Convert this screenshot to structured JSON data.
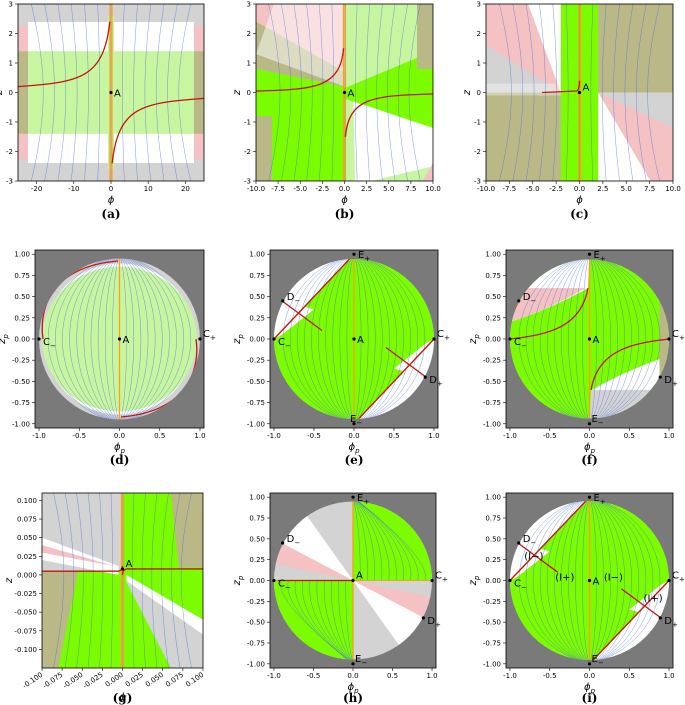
{
  "figure": {
    "background": "#ffffff"
  },
  "colors": {
    "out_gray": "#7a7a7a",
    "grey": "#d3d3d3",
    "green": "#7cfc00",
    "light_green": "#c8f5a0",
    "olive": "#b9b886",
    "pink": "#f4c2c2",
    "stream": "#4169e1",
    "traj": "#c0170c",
    "orange": "#ff9e1a"
  },
  "panels": [
    {
      "id": "a",
      "caption": "(a)",
      "kind": "cart",
      "theme": "a",
      "xlabel": "ϕ",
      "ylabel": "z",
      "xlim": [
        -25,
        25
      ],
      "ylim": [
        -3,
        3
      ],
      "xticks": [
        "-20",
        "-10",
        "0",
        "10",
        "20"
      ],
      "xtick_vals": [
        -20,
        -10,
        0,
        10,
        20
      ],
      "yticks": [
        "-3",
        "-2",
        "-1",
        "0",
        "1",
        "2",
        "3"
      ],
      "ytick_vals": [
        -3,
        -2,
        -1,
        0,
        1,
        2,
        3
      ],
      "points": [
        {
          "label": "A",
          "x": 0,
          "y": 0,
          "dx": 3,
          "dy": 4
        }
      ]
    },
    {
      "id": "b",
      "caption": "(b)",
      "kind": "cart",
      "theme": "b",
      "xlabel": "ϕ",
      "ylabel": "z",
      "xlim": [
        -10,
        10
      ],
      "ylim": [
        -3,
        3
      ],
      "xticks": [
        "-10.0",
        "-7.5",
        "-5.0",
        "-2.5",
        "0.0",
        "2.5",
        "5.0",
        "7.5",
        "10.0"
      ],
      "xtick_vals": [
        -10,
        -7.5,
        -5,
        -2.5,
        0,
        2.5,
        5,
        7.5,
        10
      ],
      "yticks": [
        "-3",
        "-2",
        "-1",
        "0",
        "1",
        "2",
        "3"
      ],
      "ytick_vals": [
        -3,
        -2,
        -1,
        0,
        1,
        2,
        3
      ],
      "points": [
        {
          "label": "A",
          "x": 0,
          "y": 0,
          "dx": 3,
          "dy": 4
        }
      ]
    },
    {
      "id": "c",
      "caption": "(c)",
      "kind": "cart",
      "theme": "c",
      "xlabel": "ϕ",
      "ylabel": "z",
      "xlim": [
        -10,
        10
      ],
      "ylim": [
        -3,
        3
      ],
      "xticks": [
        "-10.0",
        "-7.5",
        "-5.0",
        "-2.5",
        "0.0",
        "2.5",
        "5.0",
        "7.5",
        "10.0"
      ],
      "xtick_vals": [
        -10,
        -7.5,
        -5,
        -2.5,
        0,
        2.5,
        5,
        7.5,
        10
      ],
      "yticks": [
        "-3",
        "-2",
        "-1",
        "0",
        "1",
        "2",
        "3"
      ],
      "ytick_vals": [
        -3,
        -2,
        -1,
        0,
        1,
        2,
        3
      ],
      "points": [
        {
          "label": "A",
          "x": 0,
          "y": 0,
          "dx": 3,
          "dy": -2
        }
      ]
    },
    {
      "id": "d",
      "caption": "(d)",
      "kind": "disk",
      "theme": "d",
      "xlabel": "ϕp",
      "ylabel": "zp",
      "xlim": [
        -1.05,
        1.05
      ],
      "ylim": [
        -1.05,
        1.05
      ],
      "xticks": [
        "-1.0",
        "-0.5",
        "0.0",
        "0.5",
        "1.0"
      ],
      "xtick_vals": [
        -1,
        -0.5,
        0,
        0.5,
        1
      ],
      "yticks": [
        "-1.00",
        "-0.75",
        "-0.50",
        "-0.25",
        "0.00",
        "0.25",
        "0.50",
        "0.75",
        "1.00"
      ],
      "ytick_vals": [
        -1,
        -0.75,
        -0.5,
        -0.25,
        0,
        0.25,
        0.5,
        0.75,
        1
      ],
      "points": [
        {
          "label": "A",
          "x": 0,
          "y": 0,
          "dx": 3,
          "dy": 4
        },
        {
          "label": "C−",
          "x": -1,
          "y": 0,
          "dx": 4,
          "dy": 6
        },
        {
          "label": "C+",
          "x": 1,
          "y": 0,
          "dx": 3,
          "dy": -2
        }
      ]
    },
    {
      "id": "e",
      "caption": "(e)",
      "kind": "disk",
      "theme": "e",
      "xlabel": "ϕp",
      "ylabel": "zp",
      "xlim": [
        -1.05,
        1.05
      ],
      "ylim": [
        -1.05,
        1.05
      ],
      "xticks": [
        "-1.0",
        "-0.5",
        "0.0",
        "0.5",
        "1.0"
      ],
      "xtick_vals": [
        -1,
        -0.5,
        0,
        0.5,
        1
      ],
      "yticks": [
        "-1.00",
        "-0.75",
        "-0.50",
        "-0.25",
        "0.00",
        "0.25",
        "0.50",
        "0.75",
        "1.00"
      ],
      "ytick_vals": [
        -1,
        -0.75,
        -0.5,
        -0.25,
        0,
        0.25,
        0.5,
        0.75,
        1
      ],
      "points": [
        {
          "label": "A",
          "x": 0,
          "y": 0,
          "dx": 3,
          "dy": 4
        },
        {
          "label": "C−",
          "x": -1,
          "y": 0,
          "dx": 4,
          "dy": 6
        },
        {
          "label": "C+",
          "x": 1,
          "y": 0,
          "dx": 3,
          "dy": -2
        },
        {
          "label": "E+",
          "x": 0,
          "y": 1,
          "dx": 4,
          "dy": 4
        },
        {
          "label": "E−",
          "x": 0,
          "y": -1,
          "dx": -4,
          "dy": -2
        },
        {
          "label": "D−",
          "x": -0.89,
          "y": 0.45,
          "dx": 4,
          "dy": -1
        },
        {
          "label": "D+",
          "x": 0.89,
          "y": -0.45,
          "dx": 4,
          "dy": 6
        }
      ]
    },
    {
      "id": "f",
      "caption": "(f)",
      "kind": "disk",
      "theme": "f",
      "xlabel": "ϕp",
      "ylabel": "zp",
      "xlim": [
        -1.05,
        1.05
      ],
      "ylim": [
        -1.05,
        1.05
      ],
      "xticks": [
        "-1.0",
        "-0.5",
        "0.0",
        "0.5",
        "1.0"
      ],
      "xtick_vals": [
        -1,
        -0.5,
        0,
        0.5,
        1
      ],
      "yticks": [
        "-1.00",
        "-0.75",
        "-0.50",
        "-0.25",
        "0.00",
        "0.25",
        "0.50",
        "0.75",
        "1.00"
      ],
      "ytick_vals": [
        -1,
        -0.75,
        -0.5,
        -0.25,
        0,
        0.25,
        0.5,
        0.75,
        1
      ],
      "points": [
        {
          "label": "A",
          "x": 0,
          "y": 0,
          "dx": 3,
          "dy": 4
        },
        {
          "label": "C−",
          "x": -1,
          "y": 0,
          "dx": 4,
          "dy": 6
        },
        {
          "label": "C+",
          "x": 1,
          "y": 0,
          "dx": 3,
          "dy": -2
        },
        {
          "label": "E+",
          "x": 0,
          "y": 1,
          "dx": 4,
          "dy": 4
        },
        {
          "label": "E−",
          "x": 0,
          "y": -1,
          "dx": 2,
          "dy": -2
        },
        {
          "label": "D−",
          "x": -0.89,
          "y": 0.45,
          "dx": 4,
          "dy": -1
        },
        {
          "label": "D+",
          "x": 0.89,
          "y": -0.45,
          "dx": 4,
          "dy": 6
        }
      ]
    },
    {
      "id": "g",
      "caption": "(g)",
      "kind": "cart",
      "theme": "g",
      "xlabel": "ϕ",
      "ylabel": "z",
      "xlim": [
        -0.1,
        0.1
      ],
      "ylim": [
        -0.125,
        0.11
      ],
      "xticks": [
        "-0.100",
        "-0.075",
        "-0.050",
        "-0.025",
        "0.000",
        "0.025",
        "0.050",
        "0.075",
        "0.100"
      ],
      "xtick_vals": [
        -0.1,
        -0.075,
        -0.05,
        -0.025,
        0,
        0.025,
        0.05,
        0.075,
        0.1
      ],
      "yticks": [
        "-0.100",
        "-0.075",
        "-0.050",
        "-0.025",
        "0.000",
        "0.025",
        "0.050",
        "0.075",
        "0.100"
      ],
      "ytick_vals": [
        -0.1,
        -0.075,
        -0.05,
        -0.025,
        0,
        0.025,
        0.05,
        0.075,
        0.1
      ],
      "xtick_rotate": true,
      "points": [
        {
          "label": "A",
          "x": 0,
          "y": 0.008,
          "dx": 3,
          "dy": -2
        }
      ]
    },
    {
      "id": "h",
      "caption": "(h)",
      "kind": "disk",
      "theme": "h",
      "xlabel": "ϕp",
      "ylabel": "zp",
      "xlim": [
        -1.05,
        1.05
      ],
      "ylim": [
        -1.05,
        1.05
      ],
      "xticks": [
        "-1.0",
        "-0.5",
        "0.0",
        "0.5",
        "1.0"
      ],
      "xtick_vals": [
        -1,
        -0.5,
        0,
        0.5,
        1
      ],
      "yticks": [
        "-1.00",
        "-0.75",
        "-0.50",
        "-0.25",
        "0.00",
        "0.25",
        "0.50",
        "0.75",
        "1.00"
      ],
      "ytick_vals": [
        -1,
        -0.75,
        -0.5,
        -0.25,
        0,
        0.25,
        0.5,
        0.75,
        1
      ],
      "points": [
        {
          "label": "A",
          "x": 0,
          "y": 0,
          "dx": 3,
          "dy": -2
        },
        {
          "label": "C−",
          "x": -1,
          "y": 0,
          "dx": 4,
          "dy": 6
        },
        {
          "label": "C+",
          "x": 1,
          "y": 0,
          "dx": 3,
          "dy": -2
        },
        {
          "label": "E+",
          "x": 0,
          "y": 1,
          "dx": 4,
          "dy": 4
        },
        {
          "label": "E−",
          "x": 0,
          "y": -1,
          "dx": 2,
          "dy": -2
        },
        {
          "label": "D−",
          "x": -0.89,
          "y": 0.45,
          "dx": 4,
          "dy": -1
        },
        {
          "label": "D+",
          "x": 0.89,
          "y": -0.45,
          "dx": 4,
          "dy": 6
        }
      ]
    },
    {
      "id": "i",
      "caption": "(i)",
      "kind": "disk",
      "theme": "i",
      "xlabel": "ϕp",
      "ylabel": "zp",
      "xlim": [
        -1.05,
        1.05
      ],
      "ylim": [
        -1.05,
        1.05
      ],
      "xticks": [
        "-1.0",
        "-0.5",
        "0.0",
        "0.5",
        "1.0"
      ],
      "xtick_vals": [
        -1,
        -0.5,
        0,
        0.5,
        1
      ],
      "yticks": [
        "-1.00",
        "-0.75",
        "-0.50",
        "-0.25",
        "0.00",
        "0.25",
        "0.50",
        "0.75",
        "1.00"
      ],
      "ytick_vals": [
        -1,
        -0.75,
        -0.5,
        -0.25,
        0,
        0.25,
        0.5,
        0.75,
        1
      ],
      "points": [
        {
          "label": "A",
          "x": 0,
          "y": 0,
          "dx": 3,
          "dy": 4
        },
        {
          "label": "C−",
          "x": -1,
          "y": 0,
          "dx": 4,
          "dy": 6
        },
        {
          "label": "C+",
          "x": 1,
          "y": 0,
          "dx": 3,
          "dy": -2
        },
        {
          "label": "E+",
          "x": 0,
          "y": 1,
          "dx": 4,
          "dy": 4
        },
        {
          "label": "E−",
          "x": 0,
          "y": -1,
          "dx": 2,
          "dy": -2
        },
        {
          "label": "D−",
          "x": -0.89,
          "y": 0.45,
          "dx": 4,
          "dy": -1
        },
        {
          "label": "D+",
          "x": 0.89,
          "y": -0.45,
          "dx": 4,
          "dy": 6
        }
      ],
      "regions": [
        {
          "label": "(I−)",
          "x": -0.82,
          "y": 0.25
        },
        {
          "label": "(I+)",
          "x": -0.43,
          "y": 0.0
        },
        {
          "label": "(I−)",
          "x": 0.18,
          "y": 0.0
        },
        {
          "label": "(I+)",
          "x": 0.68,
          "y": -0.25
        }
      ]
    }
  ]
}
